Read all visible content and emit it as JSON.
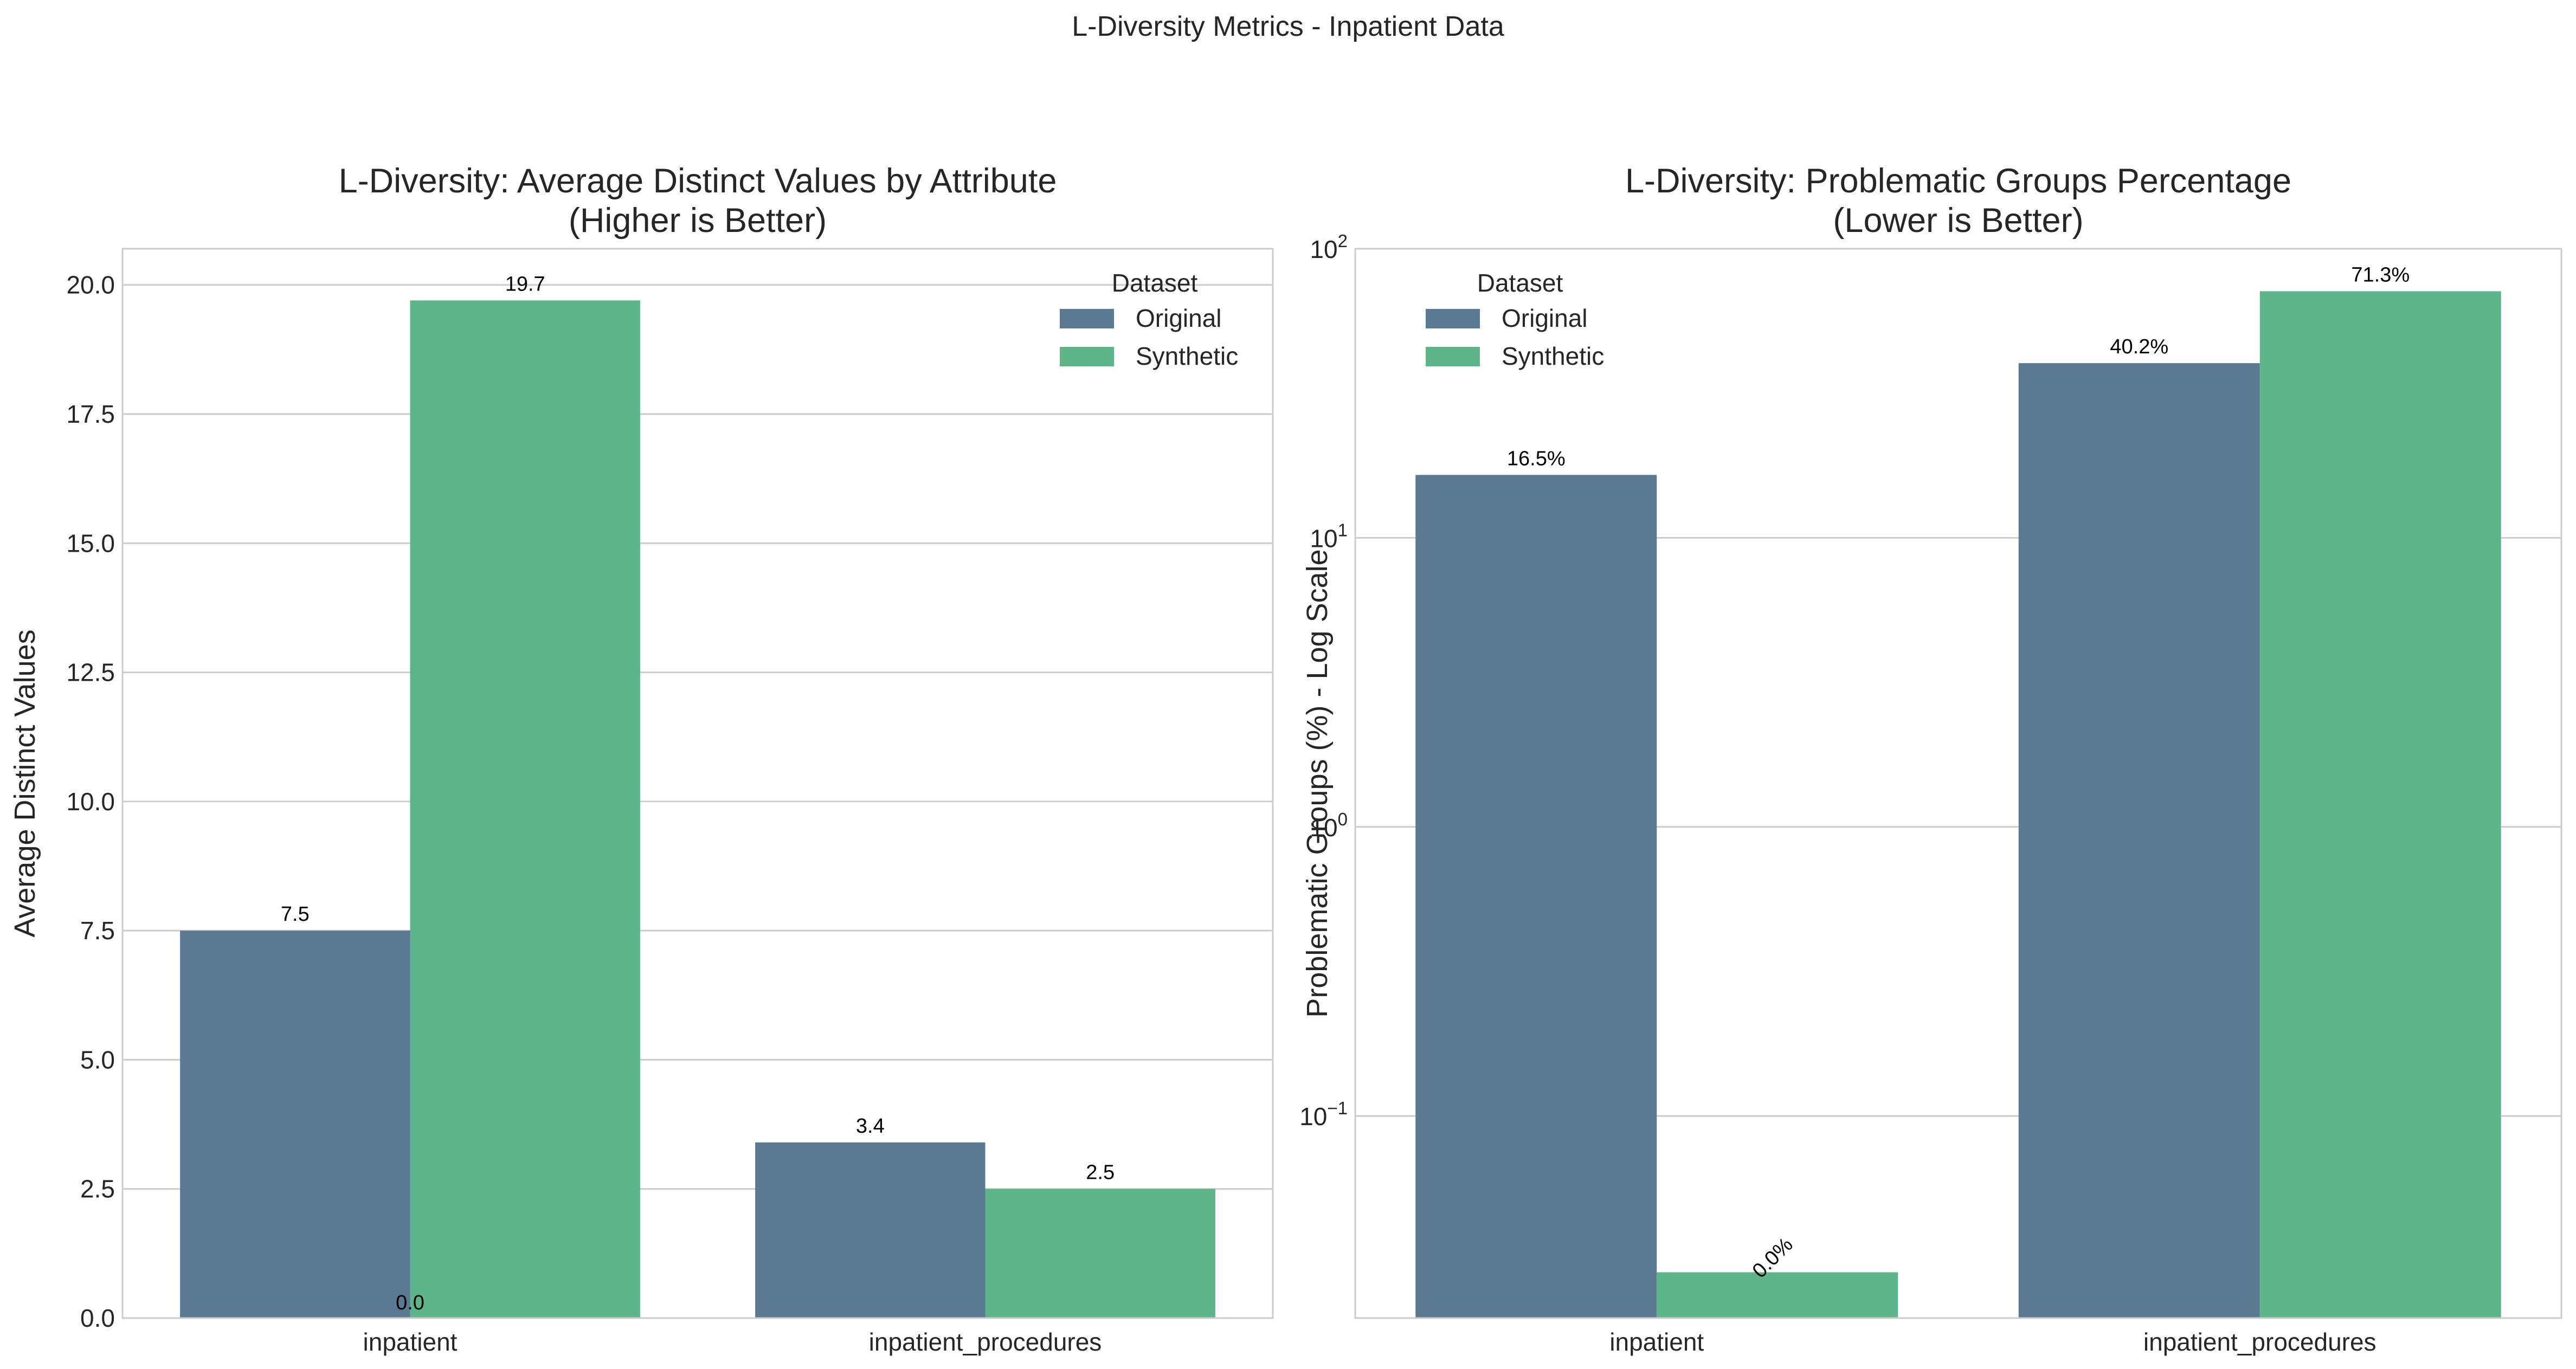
{
  "figure": {
    "suptitle": "L-Diversity Metrics - Inpatient Data"
  },
  "colors": {
    "Original": "#5a7a94",
    "Synthetic": "#5db58a",
    "grid": "#cccccc",
    "spine": "#cccccc",
    "text": "#262626"
  },
  "chart_data": [
    {
      "type": "bar",
      "title": "L-Diversity: Average Distinct Values by Attribute\n(Higher is Better)",
      "xlabel": "",
      "ylabel": "Average Distinct Values",
      "categories": [
        "inpatient",
        "inpatient_procedures"
      ],
      "series": [
        {
          "name": "Original",
          "values": [
            7.5,
            3.4
          ]
        },
        {
          "name": "Synthetic",
          "values": [
            19.7,
            2.5
          ]
        }
      ],
      "bar_labels": [
        [
          "7.5",
          "3.4"
        ],
        [
          "19.7",
          "2.5"
        ]
      ],
      "extra_labels": [
        {
          "category_index": 0,
          "text": "0.0"
        }
      ],
      "ylim": [
        0,
        20.7
      ],
      "yticks": [
        0,
        2.5,
        5,
        7.5,
        10,
        12.5,
        15,
        17.5,
        20
      ],
      "ytick_labels": [
        "0.0",
        "2.5",
        "5.0",
        "7.5",
        "10.0",
        "12.5",
        "15.0",
        "17.5",
        "20.0"
      ],
      "yscale": "linear",
      "grid": true,
      "legend": {
        "title": "Dataset",
        "placement": "top-right"
      }
    },
    {
      "type": "bar",
      "title": "L-Diversity: Problematic Groups Percentage\n(Lower is Better)",
      "xlabel": "",
      "ylabel": "Problematic Groups (%) - Log Scale",
      "categories": [
        "inpatient",
        "inpatient_procedures"
      ],
      "series": [
        {
          "name": "Original",
          "values": [
            16.5,
            40.2
          ]
        },
        {
          "name": "Synthetic",
          "values": [
            0.0,
            71.3
          ]
        }
      ],
      "bar_labels": [
        [
          "16.5%",
          "40.2%"
        ],
        [
          "0.0%",
          "71.3%"
        ]
      ],
      "ylim": [
        0.02,
        100
      ],
      "yticks": [
        0.1,
        1,
        10,
        100
      ],
      "ytick_labels": [
        [
          "10",
          "−1"
        ],
        [
          "10",
          "0"
        ],
        [
          "10",
          "1"
        ],
        [
          "10",
          "2"
        ]
      ],
      "yscale": "log",
      "grid": true,
      "legend": {
        "title": "Dataset",
        "placement": "top-left"
      }
    }
  ]
}
